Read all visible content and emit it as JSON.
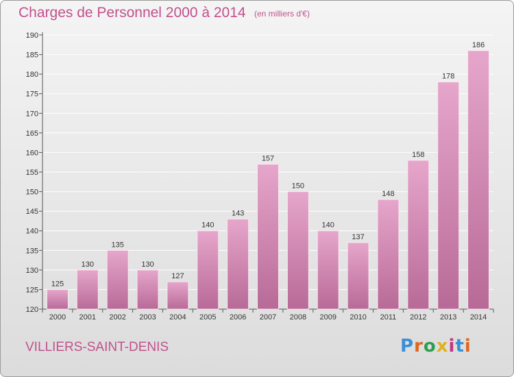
{
  "title": "Charges de Personnel 2000 à 2014",
  "subtitle": "(en milliers d'€)",
  "commune": "VILLIERS-SAINT-DENIS",
  "logo": {
    "text": "Proxiti",
    "letter_colors": [
      "#3a8fd6",
      "#e0671f",
      "#2e9e4f",
      "#e0b21e",
      "#c2377d",
      "#3a8fd6",
      "#e0671f"
    ]
  },
  "colors": {
    "bar": "#d98ab8",
    "bar_dark": "#b5638f",
    "bar_light": "#e6a6cb",
    "accent": "#c24f8d"
  },
  "chart_data": {
    "type": "bar",
    "title": "Charges de Personnel 2000 à 2014",
    "subtitle": "(en milliers d'€)",
    "xlabel": "",
    "ylabel": "",
    "ylim": [
      120,
      190
    ],
    "yticks": [
      120,
      125,
      130,
      135,
      140,
      145,
      150,
      155,
      160,
      165,
      170,
      175,
      180,
      185,
      190
    ],
    "categories": [
      "2000",
      "2001",
      "2002",
      "2003",
      "2004",
      "2005",
      "2006",
      "2007",
      "2008",
      "2009",
      "2010",
      "2011",
      "2012",
      "2013",
      "2014"
    ],
    "values": [
      125,
      130,
      135,
      130,
      127,
      140,
      143,
      157,
      150,
      140,
      137,
      148,
      158,
      178,
      186
    ],
    "grid": true,
    "legend": "none"
  }
}
